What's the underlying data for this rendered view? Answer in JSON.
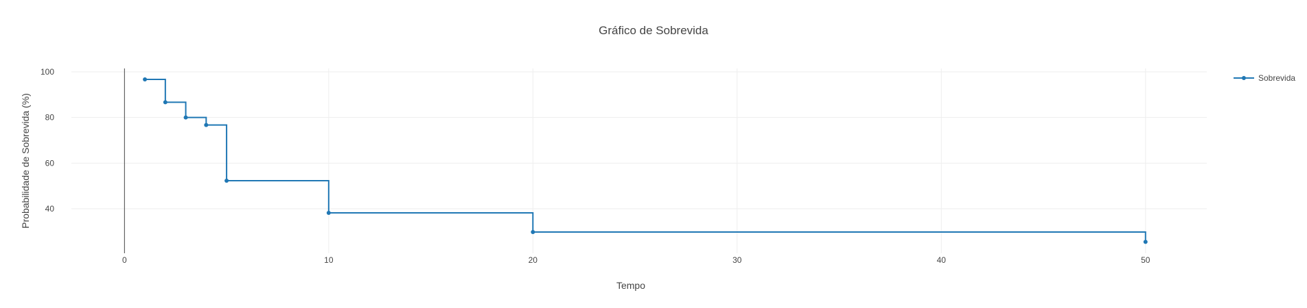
{
  "chart_data": {
    "type": "line",
    "title": "Gráfico de Sobrevida",
    "xlabel": "Tempo",
    "ylabel": "Probabilidade de Sobrevida (%)",
    "xlim": [
      -2.6,
      53
    ],
    "ylim": [
      20.5,
      101.5
    ],
    "x_ticks": [
      0,
      10,
      20,
      30,
      40,
      50
    ],
    "y_ticks": [
      40,
      60,
      80,
      100
    ],
    "grid": true,
    "line_shape": "step",
    "legend_position": "top-right",
    "series": [
      {
        "name": "Sobrevida",
        "color": "#1f77b4",
        "x": [
          1,
          2,
          3,
          4,
          5,
          10,
          20,
          50
        ],
        "y": [
          96.7,
          86.7,
          80.0,
          76.7,
          52.3,
          38.2,
          29.8,
          25.5
        ]
      }
    ]
  }
}
